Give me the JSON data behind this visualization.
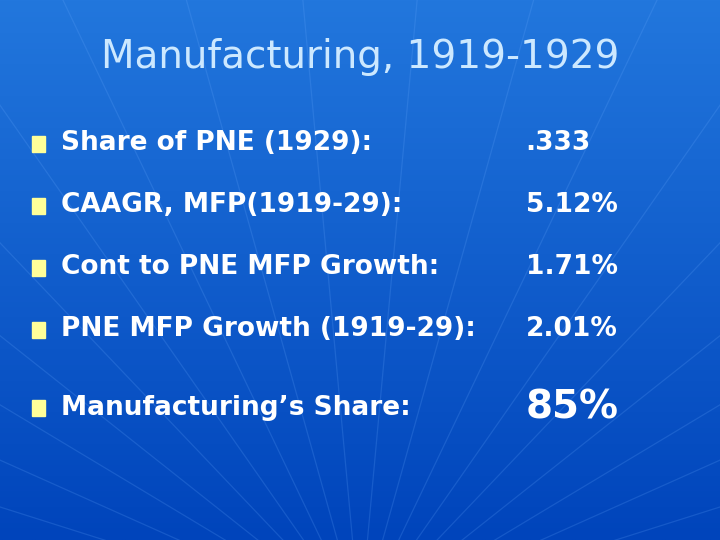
{
  "title": "Manufacturing, 1919-1929",
  "title_color": "#cce8ff",
  "title_fontsize": 28,
  "bg_color": "#1a6ad4",
  "bullet_color": "#ffff99",
  "text_color": "#ffffff",
  "bullet_items": [
    {
      "label": "Share of PNE (1929):",
      "value": ".333",
      "bold_value": false
    },
    {
      "label": "CAAGR, MFP(1919-29):",
      "value": "5.12%",
      "bold_value": false
    },
    {
      "label": "Cont to PNE MFP Growth:",
      "value": "1.71%",
      "bold_value": false
    },
    {
      "label": "PNE MFP Growth (1919-29):",
      "value": "2.01%",
      "bold_value": false
    },
    {
      "label": "Manufacturing’s Share:",
      "value": "85%",
      "bold_value": true
    }
  ],
  "bullet_fontsize": 19,
  "value_fontsize": 19,
  "value_fontsize_large": 28,
  "figwidth": 7.2,
  "figheight": 5.4,
  "dpi": 100
}
